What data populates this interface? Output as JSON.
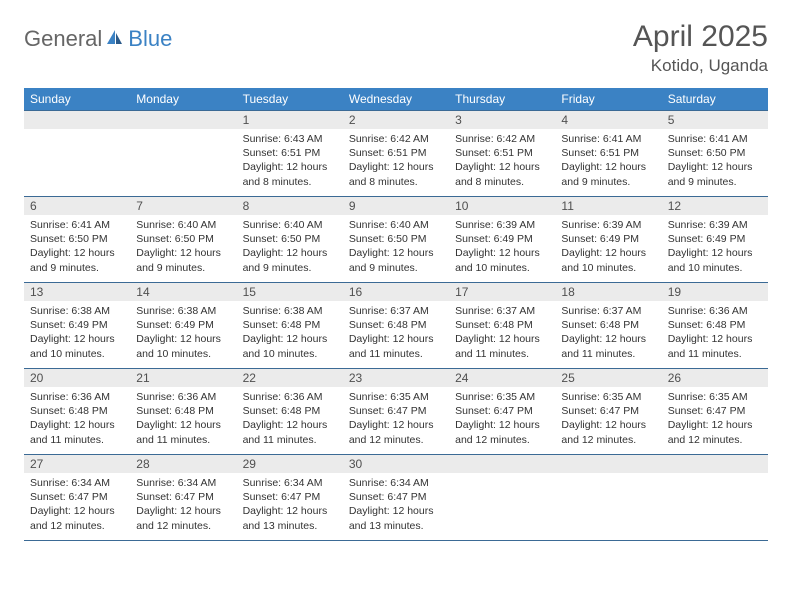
{
  "header": {
    "logo_part1": "General",
    "logo_part2": "Blue",
    "title": "April 2025",
    "location": "Kotido, Uganda"
  },
  "colors": {
    "header_bg": "#3b82c4",
    "header_text": "#ffffff",
    "daynum_bg": "#ebebeb",
    "daynum_text": "#505050",
    "border": "#3b6a95",
    "body_text": "#333333",
    "logo_gray": "#666666",
    "logo_blue": "#3b82c4"
  },
  "day_headers": [
    "Sunday",
    "Monday",
    "Tuesday",
    "Wednesday",
    "Thursday",
    "Friday",
    "Saturday"
  ],
  "weeks": [
    [
      {
        "empty": true
      },
      {
        "empty": true
      },
      {
        "num": "1",
        "sunrise": "Sunrise: 6:43 AM",
        "sunset": "Sunset: 6:51 PM",
        "daylight": "Daylight: 12 hours and 8 minutes."
      },
      {
        "num": "2",
        "sunrise": "Sunrise: 6:42 AM",
        "sunset": "Sunset: 6:51 PM",
        "daylight": "Daylight: 12 hours and 8 minutes."
      },
      {
        "num": "3",
        "sunrise": "Sunrise: 6:42 AM",
        "sunset": "Sunset: 6:51 PM",
        "daylight": "Daylight: 12 hours and 8 minutes."
      },
      {
        "num": "4",
        "sunrise": "Sunrise: 6:41 AM",
        "sunset": "Sunset: 6:51 PM",
        "daylight": "Daylight: 12 hours and 9 minutes."
      },
      {
        "num": "5",
        "sunrise": "Sunrise: 6:41 AM",
        "sunset": "Sunset: 6:50 PM",
        "daylight": "Daylight: 12 hours and 9 minutes."
      }
    ],
    [
      {
        "num": "6",
        "sunrise": "Sunrise: 6:41 AM",
        "sunset": "Sunset: 6:50 PM",
        "daylight": "Daylight: 12 hours and 9 minutes."
      },
      {
        "num": "7",
        "sunrise": "Sunrise: 6:40 AM",
        "sunset": "Sunset: 6:50 PM",
        "daylight": "Daylight: 12 hours and 9 minutes."
      },
      {
        "num": "8",
        "sunrise": "Sunrise: 6:40 AM",
        "sunset": "Sunset: 6:50 PM",
        "daylight": "Daylight: 12 hours and 9 minutes."
      },
      {
        "num": "9",
        "sunrise": "Sunrise: 6:40 AM",
        "sunset": "Sunset: 6:50 PM",
        "daylight": "Daylight: 12 hours and 9 minutes."
      },
      {
        "num": "10",
        "sunrise": "Sunrise: 6:39 AM",
        "sunset": "Sunset: 6:49 PM",
        "daylight": "Daylight: 12 hours and 10 minutes."
      },
      {
        "num": "11",
        "sunrise": "Sunrise: 6:39 AM",
        "sunset": "Sunset: 6:49 PM",
        "daylight": "Daylight: 12 hours and 10 minutes."
      },
      {
        "num": "12",
        "sunrise": "Sunrise: 6:39 AM",
        "sunset": "Sunset: 6:49 PM",
        "daylight": "Daylight: 12 hours and 10 minutes."
      }
    ],
    [
      {
        "num": "13",
        "sunrise": "Sunrise: 6:38 AM",
        "sunset": "Sunset: 6:49 PM",
        "daylight": "Daylight: 12 hours and 10 minutes."
      },
      {
        "num": "14",
        "sunrise": "Sunrise: 6:38 AM",
        "sunset": "Sunset: 6:49 PM",
        "daylight": "Daylight: 12 hours and 10 minutes."
      },
      {
        "num": "15",
        "sunrise": "Sunrise: 6:38 AM",
        "sunset": "Sunset: 6:48 PM",
        "daylight": "Daylight: 12 hours and 10 minutes."
      },
      {
        "num": "16",
        "sunrise": "Sunrise: 6:37 AM",
        "sunset": "Sunset: 6:48 PM",
        "daylight": "Daylight: 12 hours and 11 minutes."
      },
      {
        "num": "17",
        "sunrise": "Sunrise: 6:37 AM",
        "sunset": "Sunset: 6:48 PM",
        "daylight": "Daylight: 12 hours and 11 minutes."
      },
      {
        "num": "18",
        "sunrise": "Sunrise: 6:37 AM",
        "sunset": "Sunset: 6:48 PM",
        "daylight": "Daylight: 12 hours and 11 minutes."
      },
      {
        "num": "19",
        "sunrise": "Sunrise: 6:36 AM",
        "sunset": "Sunset: 6:48 PM",
        "daylight": "Daylight: 12 hours and 11 minutes."
      }
    ],
    [
      {
        "num": "20",
        "sunrise": "Sunrise: 6:36 AM",
        "sunset": "Sunset: 6:48 PM",
        "daylight": "Daylight: 12 hours and 11 minutes."
      },
      {
        "num": "21",
        "sunrise": "Sunrise: 6:36 AM",
        "sunset": "Sunset: 6:48 PM",
        "daylight": "Daylight: 12 hours and 11 minutes."
      },
      {
        "num": "22",
        "sunrise": "Sunrise: 6:36 AM",
        "sunset": "Sunset: 6:48 PM",
        "daylight": "Daylight: 12 hours and 11 minutes."
      },
      {
        "num": "23",
        "sunrise": "Sunrise: 6:35 AM",
        "sunset": "Sunset: 6:47 PM",
        "daylight": "Daylight: 12 hours and 12 minutes."
      },
      {
        "num": "24",
        "sunrise": "Sunrise: 6:35 AM",
        "sunset": "Sunset: 6:47 PM",
        "daylight": "Daylight: 12 hours and 12 minutes."
      },
      {
        "num": "25",
        "sunrise": "Sunrise: 6:35 AM",
        "sunset": "Sunset: 6:47 PM",
        "daylight": "Daylight: 12 hours and 12 minutes."
      },
      {
        "num": "26",
        "sunrise": "Sunrise: 6:35 AM",
        "sunset": "Sunset: 6:47 PM",
        "daylight": "Daylight: 12 hours and 12 minutes."
      }
    ],
    [
      {
        "num": "27",
        "sunrise": "Sunrise: 6:34 AM",
        "sunset": "Sunset: 6:47 PM",
        "daylight": "Daylight: 12 hours and 12 minutes."
      },
      {
        "num": "28",
        "sunrise": "Sunrise: 6:34 AM",
        "sunset": "Sunset: 6:47 PM",
        "daylight": "Daylight: 12 hours and 12 minutes."
      },
      {
        "num": "29",
        "sunrise": "Sunrise: 6:34 AM",
        "sunset": "Sunset: 6:47 PM",
        "daylight": "Daylight: 12 hours and 13 minutes."
      },
      {
        "num": "30",
        "sunrise": "Sunrise: 6:34 AM",
        "sunset": "Sunset: 6:47 PM",
        "daylight": "Daylight: 12 hours and 13 minutes."
      },
      {
        "empty": true
      },
      {
        "empty": true
      },
      {
        "empty": true
      }
    ]
  ]
}
